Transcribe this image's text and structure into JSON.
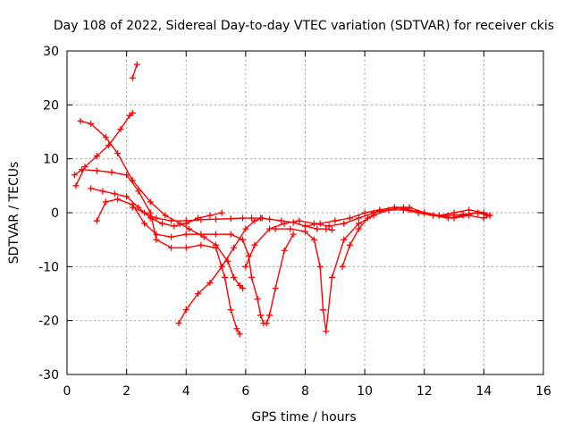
{
  "chart_data": {
    "type": "scatter",
    "title": "Day 108 of 2022, Sidereal Day-to-day VTEC variation (SDTVAR) for receiver ckis",
    "xlabel": "GPS time / hours",
    "ylabel": "SDTVAR / TECUs",
    "xlim": [
      0,
      16
    ],
    "ylim": [
      -30,
      30
    ],
    "xticks": [
      0,
      2,
      4,
      6,
      8,
      10,
      12,
      14,
      16
    ],
    "yticks": [
      -30,
      -20,
      -10,
      0,
      10,
      20,
      30
    ],
    "xtick_labels": [
      "0",
      "2",
      "4",
      "6",
      "8",
      "10",
      "12",
      "14",
      "16"
    ],
    "ytick_labels": [
      "-30",
      "-20",
      "-10",
      "0",
      "10",
      "20",
      "30"
    ],
    "grid": true,
    "marker": "+",
    "color": "#ff0000",
    "series": [
      {
        "x": [
          0.45,
          0.8,
          1.3,
          1.7,
          2.2,
          2.8,
          3.3,
          3.8,
          4.1,
          4.6,
          5.0,
          5.4,
          5.6,
          5.8,
          5.9
        ],
        "y": [
          17,
          16.5,
          14,
          11,
          6,
          2,
          -0.5,
          -2,
          -3,
          -4.5,
          -6,
          -9,
          -12,
          -13.5,
          -14
        ]
      },
      {
        "x": [
          0.3,
          0.6,
          1.0,
          1.4,
          1.8,
          2.1,
          2.2
        ],
        "y": [
          5,
          8.5,
          10.5,
          12.5,
          15.5,
          18,
          18.5
        ]
      },
      {
        "x": [
          0.25,
          0.5,
          1.0,
          1.5,
          2.0,
          2.4,
          2.8,
          3.0,
          3.5,
          4.0,
          4.5,
          5.0,
          5.3,
          5.5,
          5.7,
          5.8
        ],
        "y": [
          7,
          8,
          7.8,
          7.5,
          7,
          4,
          0,
          -5,
          -6.5,
          -6.5,
          -6,
          -6.5,
          -12,
          -18,
          -21.5,
          -22.5
        ]
      },
      {
        "x": [
          0.8,
          1.2,
          1.6,
          2.0,
          2.4,
          2.8,
          3.2,
          3.6,
          4.0,
          4.4,
          4.8,
          5.2
        ],
        "y": [
          4.5,
          4,
          3.5,
          3,
          1,
          -1,
          -2,
          -2.5,
          -2,
          -1,
          -0.5,
          0
        ]
      },
      {
        "x": [
          1.0,
          1.3,
          1.7,
          2.2,
          2.6,
          3.0,
          3.5,
          4.0,
          4.5,
          5.0,
          5.5,
          5.9,
          6.1,
          6.2,
          6.4,
          6.5,
          6.6,
          6.7,
          6.8,
          7.0,
          7.3,
          7.6
        ],
        "y": [
          -1.5,
          2,
          2.5,
          1.5,
          -2,
          -4,
          -4.5,
          -4,
          -4,
          -4,
          -4,
          -5,
          -8,
          -12,
          -16,
          -19,
          -20.5,
          -20.5,
          -19,
          -14,
          -7,
          -4
        ]
      },
      {
        "x": [
          2.2,
          2.6,
          3.0,
          3.5,
          4.0,
          4.5,
          5.0,
          5.5,
          5.9,
          6.2,
          6.5,
          6.8,
          7.2,
          7.6,
          8.0,
          8.4,
          8.7,
          8.9
        ],
        "y": [
          1,
          0,
          -1,
          -1.5,
          -1.5,
          -1.3,
          -1.2,
          -1.1,
          -1,
          -1,
          -1,
          -1.2,
          -1.5,
          -1.8,
          -2.5,
          -3,
          -3,
          -3.2
        ]
      },
      {
        "x": [
          2.2,
          2.35
        ],
        "y": [
          25,
          27.5
        ]
      },
      {
        "x": [
          3.75,
          4.0,
          4.4,
          4.8,
          5.2,
          5.6,
          6.0,
          6.3,
          6.55
        ],
        "y": [
          -20.5,
          -18,
          -15,
          -13,
          -10,
          -6.5,
          -3,
          -1.5,
          -1
        ]
      },
      {
        "x": [
          6.0,
          6.3,
          6.8,
          7.3,
          7.8,
          8.3,
          8.8,
          9.3,
          9.8,
          10.3,
          10.8,
          11.3,
          11.8,
          12.3,
          12.8,
          13.3,
          13.8,
          14.2
        ],
        "y": [
          -10,
          -6,
          -3,
          -2,
          -1.5,
          -2,
          -2.5,
          -2,
          -1,
          0,
          0.5,
          0.5,
          0,
          -0.5,
          -0.5,
          -0.3,
          0,
          -0.5
        ]
      },
      {
        "x": [
          7.0,
          7.5,
          8.0,
          8.3,
          8.5,
          8.6,
          8.7,
          8.9,
          9.3,
          9.8,
          10.3,
          10.8,
          11.3,
          11.8,
          12.3,
          12.8,
          13.3,
          13.8,
          14.1
        ],
        "y": [
          -3,
          -3,
          -3.5,
          -5,
          -10,
          -18,
          -22,
          -12,
          -5,
          -2,
          -0.5,
          0.5,
          1,
          0,
          -0.5,
          -1,
          -0.5,
          0,
          -0.5
        ]
      },
      {
        "x": [
          9.25,
          9.5,
          9.8,
          10.1,
          10.5,
          11.0,
          11.5,
          12.0,
          12.5,
          13.0,
          13.5,
          14.0,
          14.2
        ],
        "y": [
          -10,
          -6,
          -3,
          -1,
          0.5,
          1,
          1,
          0,
          -0.5,
          -1,
          -0.5,
          -1,
          -0.5
        ]
      },
      {
        "x": [
          8.0,
          8.5,
          9.0,
          9.5,
          10.0,
          10.5,
          11.0,
          11.5,
          12.0,
          12.5,
          13.0,
          13.5,
          14.0,
          14.2
        ],
        "y": [
          -2.5,
          -2,
          -1.5,
          -1,
          0,
          0.5,
          1,
          0.5,
          0,
          -0.5,
          0,
          0.5,
          0,
          -0.5
        ]
      }
    ]
  }
}
